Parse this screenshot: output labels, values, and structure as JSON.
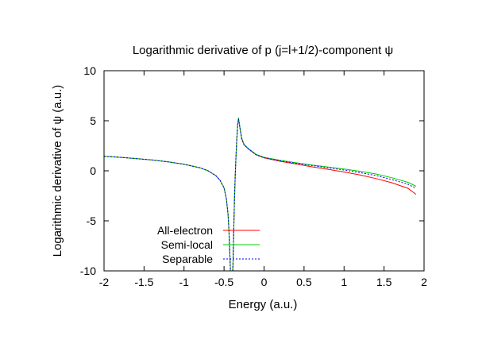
{
  "chart_data": {
    "type": "line",
    "title": "Logarithmic derivative of p (j=l+1/2)-component ψ",
    "xlabel": "Energy (a.u.)",
    "ylabel": "Logarithmic derivative of ψ (a.u.)",
    "xlim": [
      -2,
      2
    ],
    "ylim": [
      -10,
      10
    ],
    "xticks": [
      "-2",
      "-1.5",
      "-1",
      "-0.5",
      "0",
      "0.5",
      "1",
      "1.5",
      "2"
    ],
    "yticks": [
      "10",
      "5",
      "0",
      "-5",
      "-10"
    ],
    "grid": false,
    "legend_position": "bottom-left",
    "series": [
      {
        "name": "All-electron",
        "color": "#ff0000",
        "dash": "solid",
        "segments": [
          {
            "x": [
              -2.0,
              -1.8,
              -1.6,
              -1.4,
              -1.2,
              -1.0,
              -0.8,
              -0.7,
              -0.6,
              -0.55,
              -0.5,
              -0.47,
              -0.45,
              -0.44,
              -0.43,
              -0.42
            ],
            "y": [
              1.45,
              1.35,
              1.22,
              1.08,
              0.9,
              0.65,
              0.3,
              0.0,
              -0.5,
              -0.95,
              -1.7,
              -2.8,
              -4.4,
              -5.8,
              -7.8,
              -10.0
            ]
          },
          {
            "x": [
              -0.39,
              -0.38,
              -0.37,
              -0.36,
              -0.35,
              -0.34,
              -0.33,
              -0.32
            ],
            "y": [
              -10.0,
              -6.5,
              -3.0,
              -0.5,
              1.5,
              3.2,
              4.6,
              5.2
            ]
          },
          {
            "x": [
              -0.32,
              -0.3,
              -0.28,
              -0.25,
              -0.2,
              -0.1,
              0.0,
              0.2,
              0.4,
              0.6,
              0.8,
              1.0,
              1.2,
              1.4,
              1.6,
              1.8,
              1.9
            ],
            "y": [
              5.2,
              4.2,
              3.2,
              2.6,
              2.2,
              1.6,
              1.3,
              0.95,
              0.68,
              0.4,
              0.15,
              -0.12,
              -0.42,
              -0.78,
              -1.2,
              -1.75,
              -2.35
            ]
          }
        ]
      },
      {
        "name": "Semi-local",
        "color": "#00cc00",
        "dash": "solid",
        "segments": [
          {
            "x": [
              -2.0,
              -1.8,
              -1.6,
              -1.4,
              -1.2,
              -1.0,
              -0.8,
              -0.7,
              -0.6,
              -0.55,
              -0.5,
              -0.47,
              -0.45,
              -0.44,
              -0.43,
              -0.42
            ],
            "y": [
              1.45,
              1.35,
              1.22,
              1.08,
              0.9,
              0.65,
              0.3,
              0.0,
              -0.5,
              -0.95,
              -1.7,
              -2.8,
              -4.4,
              -5.8,
              -7.8,
              -10.0
            ]
          },
          {
            "x": [
              -0.39,
              -0.38,
              -0.37,
              -0.36,
              -0.35,
              -0.34,
              -0.33,
              -0.32
            ],
            "y": [
              -10.0,
              -6.5,
              -3.0,
              -0.5,
              1.5,
              3.2,
              4.6,
              5.3
            ]
          },
          {
            "x": [
              -0.32,
              -0.3,
              -0.28,
              -0.25,
              -0.2,
              -0.1,
              0.0,
              0.2,
              0.4,
              0.6,
              0.8,
              1.0,
              1.2,
              1.4,
              1.6,
              1.8,
              1.9
            ],
            "y": [
              5.3,
              4.3,
              3.3,
              2.65,
              2.25,
              1.65,
              1.35,
              1.05,
              0.8,
              0.58,
              0.38,
              0.18,
              -0.05,
              -0.32,
              -0.7,
              -1.15,
              -1.55
            ]
          }
        ]
      },
      {
        "name": "Separable",
        "color": "#0000ff",
        "dash": "dotted",
        "segments": [
          {
            "x": [
              -2.0,
              -1.8,
              -1.6,
              -1.4,
              -1.2,
              -1.0,
              -0.8,
              -0.7,
              -0.6,
              -0.55,
              -0.5,
              -0.47,
              -0.45,
              -0.44,
              -0.43,
              -0.42
            ],
            "y": [
              1.45,
              1.35,
              1.22,
              1.08,
              0.9,
              0.65,
              0.3,
              0.0,
              -0.5,
              -0.95,
              -1.7,
              -2.8,
              -4.4,
              -5.8,
              -7.8,
              -10.0
            ]
          },
          {
            "x": [
              -0.39,
              -0.38,
              -0.37,
              -0.36,
              -0.35,
              -0.34,
              -0.33,
              -0.32
            ],
            "y": [
              -10.0,
              -6.5,
              -3.0,
              -0.5,
              1.5,
              3.2,
              4.6,
              5.2
            ]
          },
          {
            "x": [
              -0.32,
              -0.3,
              -0.28,
              -0.25,
              -0.2,
              -0.1,
              0.0,
              0.2,
              0.4,
              0.6,
              0.8,
              1.0,
              1.2,
              1.4,
              1.6,
              1.8,
              1.9
            ],
            "y": [
              5.2,
              4.2,
              3.2,
              2.6,
              2.2,
              1.6,
              1.3,
              1.0,
              0.75,
              0.52,
              0.3,
              0.08,
              -0.18,
              -0.48,
              -0.88,
              -1.35,
              -1.75
            ]
          }
        ]
      }
    ]
  }
}
